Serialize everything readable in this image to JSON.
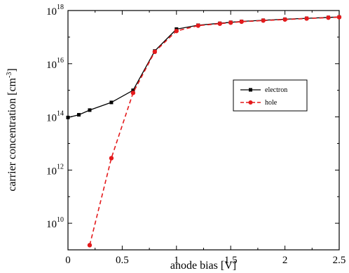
{
  "chart_data": {
    "type": "line",
    "xlabel": "anode bias [V]",
    "ylabel": "carrier concentration [cm",
    "ylabel_superscript": "-3",
    "ylabel_suffix": "]",
    "x_scale": "linear",
    "y_scale": "log",
    "xlim": [
      0,
      2.5
    ],
    "ylim": [
      1000000000.0,
      1e+18
    ],
    "x_ticks": [
      {
        "value": 0,
        "label": "0"
      },
      {
        "value": 0.5,
        "label": "0.5"
      },
      {
        "value": 1,
        "label": "1"
      },
      {
        "value": 1.5,
        "label": "1.5"
      },
      {
        "value": 2,
        "label": "2"
      },
      {
        "value": 2.5,
        "label": "2.5"
      }
    ],
    "y_ticks": [
      {
        "value": 10000000000.0,
        "base": "10",
        "exp": "10"
      },
      {
        "value": 1000000000000.0,
        "base": "10",
        "exp": "12"
      },
      {
        "value": 100000000000000.0,
        "base": "10",
        "exp": "14"
      },
      {
        "value": 1e+16,
        "base": "10",
        "exp": "16"
      },
      {
        "value": 1e+18,
        "base": "10",
        "exp": "18"
      }
    ],
    "grid": false,
    "legend_position": "center-right",
    "series": [
      {
        "name": "electron",
        "color": "#000000",
        "marker": "square",
        "line_style": "solid",
        "x": [
          0,
          0.1,
          0.2,
          0.4,
          0.6,
          0.8,
          1.0,
          1.2,
          1.4,
          1.5,
          1.6,
          1.8,
          2.0,
          2.2,
          2.4,
          2.5
        ],
        "y": [
          95000000000000.0,
          120000000000000.0,
          180000000000000.0,
          350000000000000.0,
          1000000000000000.0,
          3e+16,
          2e+17,
          2.8e+17,
          3.3e+17,
          3.6e+17,
          3.9e+17,
          4.3e+17,
          4.7e+17,
          5.1e+17,
          5.5e+17,
          5.7e+17
        ]
      },
      {
        "name": "hole",
        "color": "#e41a1c",
        "marker": "circle",
        "line_style": "dashed",
        "x": [
          0.2,
          0.4,
          0.6,
          0.8,
          1.0,
          1.2,
          1.4,
          1.5,
          1.6,
          1.8,
          2.0,
          2.2,
          2.4,
          2.5
        ],
        "y": [
          1500000000.0,
          2800000000000.0,
          800000000000000.0,
          2.8e+16,
          1.7e+17,
          2.7e+17,
          3.2e+17,
          3.5e+17,
          3.8e+17,
          4.2e+17,
          4.6e+17,
          5e+17,
          5.4e+17,
          5.6e+17
        ]
      }
    ]
  }
}
